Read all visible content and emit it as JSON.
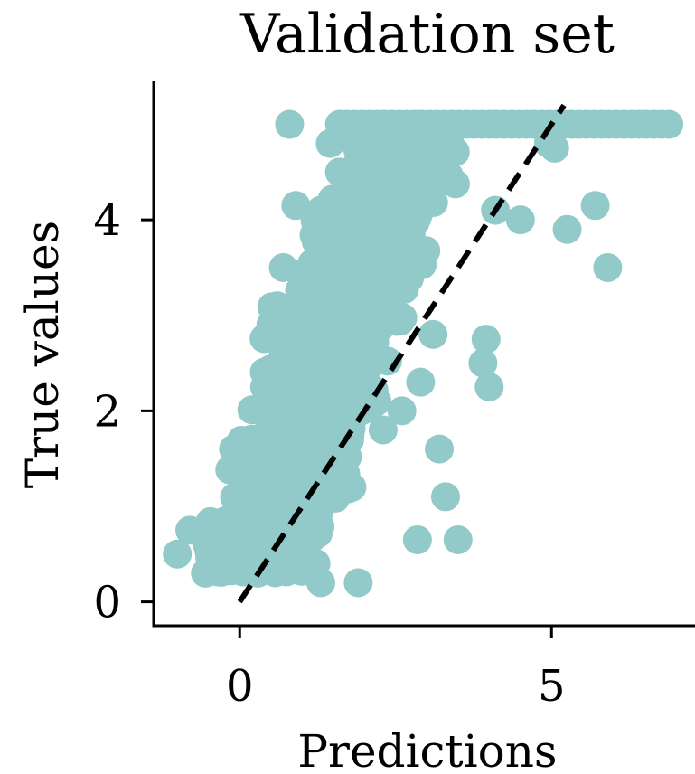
{
  "chart_data": {
    "type": "scatter",
    "title": "Validation set",
    "xlabel": "Predictions",
    "ylabel": "True values",
    "xlim": [
      -1.38,
      7.3
    ],
    "ylim": [
      -0.25,
      5.45
    ],
    "xticks": [
      0,
      5
    ],
    "yticks": [
      0,
      2,
      4
    ],
    "xtick_labels": [
      "0",
      "5"
    ],
    "ytick_labels": [
      "0",
      "2",
      "4"
    ],
    "grid": false,
    "legend": "none",
    "marker_color": "#92C9C9",
    "reference_line": {
      "style": "dashed",
      "color": "#000000",
      "x": [
        0,
        5.2
      ],
      "y": [
        0,
        5.2
      ]
    },
    "series": [
      {
        "color": "#92C9C9",
        "x": [
          0.8,
          0.9,
          1.45,
          1.3,
          0.6,
          0.75,
          0.7,
          0.2,
          0.4,
          0.45,
          1.3,
          1.4,
          1.25,
          1.6,
          1.55,
          -0.8,
          -1.0,
          -0.55,
          -0.5,
          -0.3,
          0.0,
          -0.1,
          0.3,
          0.1,
          0.5,
          1.3,
          1.9,
          2.85,
          3.5,
          3.3,
          3.2,
          3.9,
          4.0,
          3.95,
          4.1,
          4.5,
          4.95,
          5.05,
          5.25,
          5.7,
          5.9,
          1.65,
          1.75,
          1.5,
          1.4,
          1.2,
          1.0,
          0.7,
          0.5,
          2.2,
          2.0,
          1.8,
          2.3,
          2.6,
          3.1,
          2.9
        ],
        "y": [
          5.0,
          4.15,
          4.8,
          4.1,
          3.1,
          2.75,
          3.5,
          1.6,
          2.25,
          2.0,
          3.7,
          3.3,
          3.45,
          4.5,
          4.2,
          0.75,
          0.5,
          0.3,
          0.55,
          0.65,
          0.8,
          1.6,
          0.6,
          1.3,
          1.1,
          0.2,
          0.2,
          0.65,
          0.65,
          1.1,
          1.6,
          2.5,
          2.25,
          2.75,
          4.1,
          4.0,
          4.8,
          4.75,
          3.9,
          4.15,
          3.5,
          2.8,
          3.1,
          2.2,
          1.9,
          1.7,
          1.5,
          2.6,
          2.9,
          2.1,
          2.5,
          1.2,
          1.8,
          2.0,
          2.8,
          2.3
        ]
      }
    ]
  }
}
